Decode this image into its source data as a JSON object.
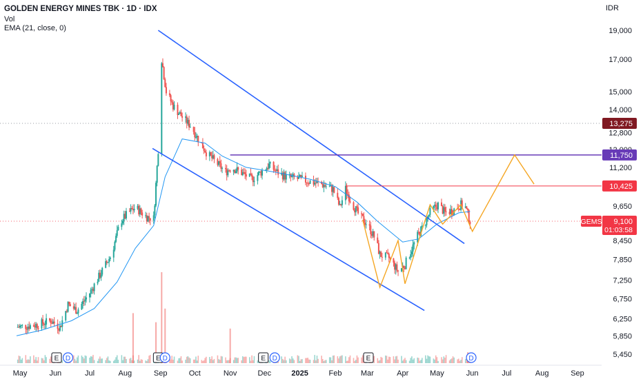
{
  "header": {
    "title": "GOLDEN ENERGY MINES TBK · 1D · IDX",
    "vol_label": "Vol",
    "ema_label": "EMA (21, close, 0)"
  },
  "currency": "IDR",
  "colors": {
    "up": "#26a69a",
    "down": "#ef5350",
    "ema": "#2196f3",
    "channel": "#2962ff",
    "resistance_high": "#673ab7",
    "resistance_mid": "#f23645",
    "zigzag": "#f5a623",
    "current_price": "#f23645",
    "high_marker": "#801922"
  },
  "chart_data": {
    "type": "candlestick",
    "symbol": "GEMS",
    "y_scale": "log",
    "y_range": [
      5200,
      21000
    ],
    "y_ticks": [
      "19,000",
      "17,000",
      "15,000",
      "14,000",
      "12,800",
      "12,000",
      "11,200",
      "9,650",
      "8,450",
      "7,850",
      "7,250",
      "6,750",
      "6,250",
      "5,850",
      "5,450"
    ],
    "y_tick_values": [
      19000,
      17000,
      15000,
      14000,
      12800,
      12000,
      11200,
      9650,
      8450,
      7850,
      7250,
      6750,
      6250,
      5850,
      5450
    ],
    "x_ticks": [
      "May",
      "Jun",
      "Jul",
      "Aug",
      "Sep",
      "Oct",
      "Nov",
      "Dec",
      "2025",
      "Feb",
      "Mar",
      "Apr",
      "May",
      "Jun",
      "Jul",
      "Aug",
      "Sep"
    ],
    "x_tick_dates": [
      "2024-05-01",
      "2024-06-01",
      "2024-07-01",
      "2024-08-01",
      "2024-09-01",
      "2024-10-01",
      "2024-11-01",
      "2024-12-01",
      "2025-01-01",
      "2025-02-01",
      "2025-03-01",
      "2025-04-01",
      "2025-05-01",
      "2025-06-01",
      "2025-07-01",
      "2025-08-01",
      "2025-09-01"
    ],
    "close_path": [
      [
        "2024-04-28",
        6050
      ],
      [
        "2024-05-15",
        6100
      ],
      [
        "2024-05-28",
        6200
      ],
      [
        "2024-06-05",
        6050
      ],
      [
        "2024-06-12",
        6600
      ],
      [
        "2024-06-20",
        6450
      ],
      [
        "2024-07-01",
        6900
      ],
      [
        "2024-07-10",
        7400
      ],
      [
        "2024-07-20",
        8000
      ],
      [
        "2024-07-28",
        9100
      ],
      [
        "2024-08-04",
        9400
      ],
      [
        "2024-08-10",
        9600
      ],
      [
        "2024-08-20",
        9250
      ],
      [
        "2024-08-26",
        9200
      ],
      [
        "2024-08-30",
        12000
      ],
      [
        "2024-09-02",
        17000
      ],
      [
        "2024-09-06",
        15000
      ],
      [
        "2024-09-12",
        14200
      ],
      [
        "2024-09-20",
        13600
      ],
      [
        "2024-09-28",
        13100
      ],
      [
        "2024-10-05",
        12400
      ],
      [
        "2024-10-12",
        11800
      ],
      [
        "2024-10-20",
        11400
      ],
      [
        "2024-10-28",
        11000
      ],
      [
        "2024-11-02",
        11200
      ],
      [
        "2024-11-10",
        11000
      ],
      [
        "2024-11-20",
        10700
      ],
      [
        "2024-11-28",
        11000
      ],
      [
        "2024-12-05",
        11300
      ],
      [
        "2024-12-12",
        11000
      ],
      [
        "2024-12-20",
        10800
      ],
      [
        "2025-01-01",
        10700
      ],
      [
        "2025-01-10",
        10600
      ],
      [
        "2025-01-20",
        10500
      ],
      [
        "2025-01-30",
        10300
      ],
      [
        "2025-02-05",
        9600
      ],
      [
        "2025-02-10",
        10300
      ],
      [
        "2025-02-15",
        9800
      ],
      [
        "2025-02-22",
        9300
      ],
      [
        "2025-03-01",
        9000
      ],
      [
        "2025-03-08",
        8500
      ],
      [
        "2025-03-12",
        8000
      ],
      [
        "2025-03-20",
        7900
      ],
      [
        "2025-03-28",
        7500
      ],
      [
        "2025-04-03",
        7700
      ],
      [
        "2025-04-08",
        8100
      ],
      [
        "2025-04-14",
        8600
      ],
      [
        "2025-04-20",
        9000
      ],
      [
        "2025-04-26",
        9500
      ],
      [
        "2025-05-02",
        9700
      ],
      [
        "2025-05-08",
        9400
      ],
      [
        "2025-05-15",
        9500
      ],
      [
        "2025-05-22",
        9700
      ],
      [
        "2025-05-26",
        9600
      ],
      [
        "2025-05-30",
        9100
      ]
    ],
    "ema_path": [
      [
        "2024-04-28",
        5850
      ],
      [
        "2024-05-20",
        5980
      ],
      [
        "2024-06-15",
        6200
      ],
      [
        "2024-07-05",
        6500
      ],
      [
        "2024-07-25",
        7200
      ],
      [
        "2024-08-10",
        8200
      ],
      [
        "2024-08-26",
        8950
      ],
      [
        "2024-09-05",
        10800
      ],
      [
        "2024-09-20",
        12500
      ],
      [
        "2024-10-10",
        12300
      ],
      [
        "2024-10-25",
        11700
      ],
      [
        "2024-11-15",
        11200
      ],
      [
        "2024-12-10",
        11000
      ],
      [
        "2025-01-10",
        10700
      ],
      [
        "2025-02-01",
        10400
      ],
      [
        "2025-02-20",
        9800
      ],
      [
        "2025-03-10",
        9100
      ],
      [
        "2025-04-01",
        8400
      ],
      [
        "2025-04-15",
        8500
      ],
      [
        "2025-05-01",
        9000
      ],
      [
        "2025-05-20",
        9400
      ],
      [
        "2025-05-30",
        9450
      ]
    ],
    "volume_spikes": [
      [
        "2024-08-08",
        0.55
      ],
      [
        "2024-08-28",
        0.45
      ],
      [
        "2024-09-02",
        1.0
      ],
      [
        "2024-09-05",
        0.6
      ],
      [
        "2024-11-01",
        0.38
      ],
      [
        "2025-05-28",
        0.12
      ]
    ],
    "channel_lines": [
      {
        "from": [
          "2024-08-30",
          19000
        ],
        "to": [
          "2025-05-25",
          8350
        ]
      },
      {
        "from": [
          "2024-08-25",
          12050
        ],
        "to": [
          "2025-04-20",
          6450
        ]
      }
    ],
    "levels": [
      {
        "price": 11750,
        "label": "11,750",
        "from": "2024-11-01"
      },
      {
        "price": 10425,
        "label": "10,425",
        "from": "2025-02-10"
      }
    ],
    "zigzag": [
      [
        "2025-02-25",
        9150
      ],
      [
        "2025-03-12",
        7050
      ],
      [
        "2025-03-28",
        8450
      ],
      [
        "2025-04-03",
        7150
      ],
      [
        "2025-04-25",
        9700
      ],
      [
        "2025-05-06",
        9000
      ],
      [
        "2025-05-22",
        9700
      ],
      [
        "2025-06-01",
        8750
      ],
      [
        "2025-07-08",
        11750
      ],
      [
        "2025-07-25",
        10500
      ]
    ],
    "current_price": {
      "symbol": "GEMS",
      "price": 9100,
      "label": "9,100",
      "countdown": "01:03:58"
    },
    "high_marker": {
      "price": 13275,
      "label": "13,275"
    },
    "events": [
      {
        "date": "2024-06-02",
        "type": "E"
      },
      {
        "date": "2024-06-12",
        "type": "D"
      },
      {
        "date": "2024-08-30",
        "type": "E"
      },
      {
        "date": "2024-09-05",
        "type": "D"
      },
      {
        "date": "2024-11-30",
        "type": "E"
      },
      {
        "date": "2024-12-10",
        "type": "D"
      },
      {
        "date": "2025-03-02",
        "type": "E"
      },
      {
        "date": "2025-05-31",
        "type": "D"
      }
    ]
  }
}
